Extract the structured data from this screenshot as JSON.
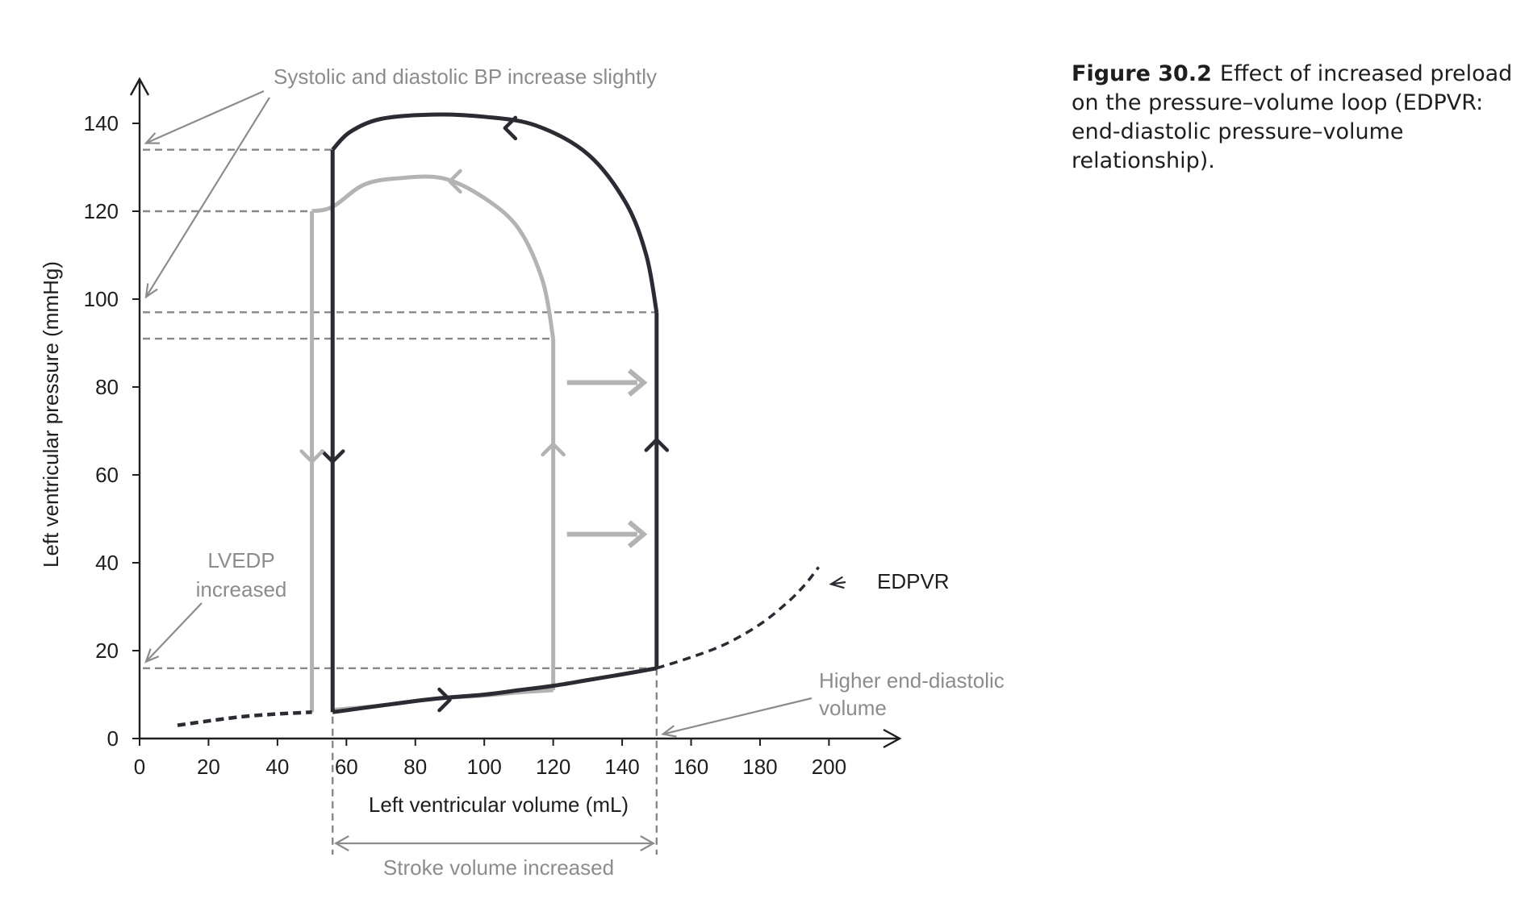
{
  "caption": {
    "label": "Figure 30.2",
    "text": "Effect of increased preload on the pressure–volume loop (EDPVR: end-diastolic pressure–volume relationship)."
  },
  "chart_data": {
    "type": "line",
    "xlabel": "Left ventricular volume (mL)",
    "ylabel": "Left ventricular pressure (mmHg)",
    "xlim": [
      0,
      220
    ],
    "ylim": [
      0,
      150
    ],
    "xticks": [
      0,
      20,
      40,
      60,
      80,
      100,
      120,
      140,
      160,
      180,
      200
    ],
    "yticks": [
      0,
      20,
      40,
      60,
      80,
      100,
      120,
      140
    ],
    "grid": false,
    "colors": {
      "baseline_loop": "#b3b3b3",
      "increased_preload_loop": "#2b2b33",
      "annotation": "#8c8c8c",
      "dashed_reference": "#888888"
    },
    "series": [
      {
        "role": "baseline_loop",
        "points": [
          [
            120,
            11
          ],
          [
            120,
            91
          ],
          [
            117,
            104
          ],
          [
            110,
            116
          ],
          [
            100,
            123
          ],
          [
            88,
            127.5
          ],
          [
            75,
            127.5
          ],
          [
            65,
            126
          ],
          [
            56,
            121
          ],
          [
            50,
            120
          ],
          [
            50,
            6
          ],
          [
            56,
            6.5
          ],
          [
            70,
            7.5
          ],
          [
            85,
            9
          ],
          [
            100,
            9.8
          ],
          [
            110,
            10.5
          ],
          [
            120,
            11
          ]
        ]
      },
      {
        "role": "increased_preload_loop",
        "points": [
          [
            150,
            16
          ],
          [
            150,
            97
          ],
          [
            147,
            110
          ],
          [
            141,
            122
          ],
          [
            130,
            133
          ],
          [
            115,
            139.5
          ],
          [
            100,
            141.5
          ],
          [
            85,
            142
          ],
          [
            70,
            141
          ],
          [
            61,
            138
          ],
          [
            56,
            134
          ],
          [
            56,
            6
          ],
          [
            70,
            7.5
          ],
          [
            85,
            9
          ],
          [
            100,
            10
          ],
          [
            110,
            11
          ],
          [
            120,
            12
          ],
          [
            130,
            13.3
          ],
          [
            140,
            14.6
          ],
          [
            150,
            16
          ]
        ]
      },
      {
        "role": "edpvr",
        "points": [
          [
            11,
            3
          ],
          [
            20,
            4
          ],
          [
            30,
            5
          ],
          [
            40,
            5.6
          ],
          [
            50,
            6
          ],
          [
            150,
            16
          ],
          [
            160,
            18.5
          ],
          [
            170,
            21.5
          ],
          [
            180,
            26
          ],
          [
            188,
            31
          ],
          [
            193,
            35
          ],
          [
            197,
            39
          ]
        ]
      }
    ],
    "reference_lines": {
      "pressure_levels": [
        {
          "y": 134,
          "x_end": 56
        },
        {
          "y": 120,
          "x_end": 50
        },
        {
          "y": 97,
          "x_end": 150
        },
        {
          "y": 91,
          "x_end": 120
        },
        {
          "y": 16,
          "x_end": 150
        }
      ],
      "volume_levels": [
        56,
        150
      ]
    },
    "annotations": {
      "bp": "Systolic and diastolic BP increase slightly",
      "lvedp_line1": "LVEDP",
      "lvedp_line2": "increased",
      "edpvr": "EDPVR",
      "edv_line1": "Higher end-diastolic",
      "edv_line2": "volume",
      "stroke_volume": "Stroke volume increased"
    }
  }
}
